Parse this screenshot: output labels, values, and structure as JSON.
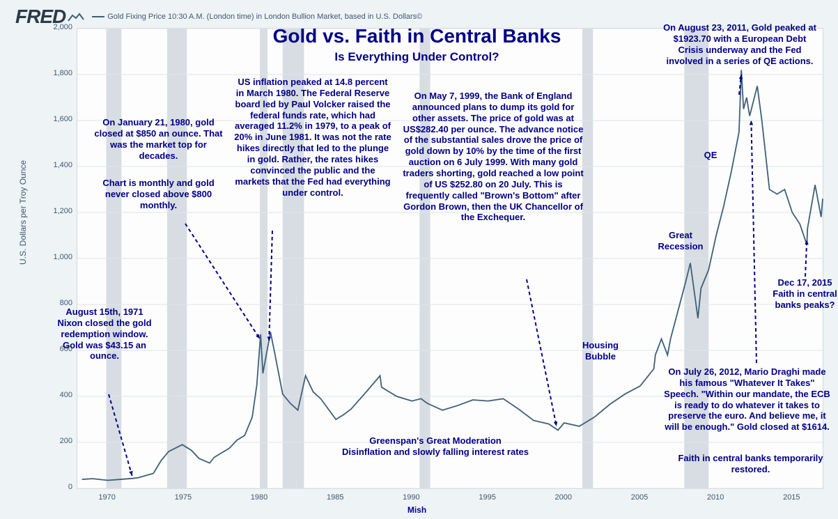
{
  "header": {
    "logo": "FRED",
    "series_label": "Gold Fixing Price 10:30 A.M. (London time) in London Bullion Market, based in U.S. Dollars©"
  },
  "chart": {
    "type": "line",
    "title": "Gold vs. Faith in Central Banks",
    "subtitle": "Is Everything Under Control?",
    "y_axis_label": "U.S. Dollars per Troy Ounce",
    "ylim": [
      0,
      2000
    ],
    "ytick_step": 200,
    "yticks": [
      0,
      200,
      400,
      600,
      800,
      1000,
      1200,
      1400,
      1600,
      1800,
      2000
    ],
    "xlim": [
      1968,
      2017
    ],
    "xticks": [
      1970,
      1975,
      1980,
      1985,
      1990,
      1995,
      2000,
      2005,
      2010,
      2015
    ],
    "line_color": "#3e5f79",
    "background_color": "#fdfdfd",
    "outer_bg": "#eef3f6",
    "grid_color": "#e0e5e9",
    "annotation_color": "#000088",
    "recession_color": "#d7dde2",
    "recessions": [
      [
        1969.9,
        1970.9
      ],
      [
        1973.9,
        1975.2
      ],
      [
        1980.0,
        1980.5
      ],
      [
        1981.5,
        1982.9
      ],
      [
        1990.5,
        1991.2
      ],
      [
        2001.2,
        2001.9
      ],
      [
        2007.9,
        2009.5
      ]
    ],
    "data": [
      [
        1968.3,
        39
      ],
      [
        1969,
        42
      ],
      [
        1970,
        35
      ],
      [
        1971,
        40
      ],
      [
        1971.6,
        43
      ],
      [
        1972,
        46
      ],
      [
        1973,
        65
      ],
      [
        1973.5,
        120
      ],
      [
        1974,
        160
      ],
      [
        1974.9,
        190
      ],
      [
        1975.5,
        165
      ],
      [
        1976,
        130
      ],
      [
        1976.7,
        110
      ],
      [
        1977,
        135
      ],
      [
        1978,
        175
      ],
      [
        1978.5,
        210
      ],
      [
        1979,
        230
      ],
      [
        1979.5,
        310
      ],
      [
        1979.8,
        450
      ],
      [
        1980.05,
        670
      ],
      [
        1980.2,
        500
      ],
      [
        1980.7,
        680
      ],
      [
        1981,
        580
      ],
      [
        1981.5,
        410
      ],
      [
        1982,
        370
      ],
      [
        1982.5,
        340
      ],
      [
        1983,
        490
      ],
      [
        1983.5,
        420
      ],
      [
        1984,
        390
      ],
      [
        1985,
        300
      ],
      [
        1985.5,
        320
      ],
      [
        1986,
        345
      ],
      [
        1987,
        420
      ],
      [
        1987.9,
        490
      ],
      [
        1988,
        440
      ],
      [
        1989,
        400
      ],
      [
        1990,
        380
      ],
      [
        1990.6,
        390
      ],
      [
        1991,
        370
      ],
      [
        1992,
        340
      ],
      [
        1993,
        360
      ],
      [
        1994,
        385
      ],
      [
        1995,
        380
      ],
      [
        1996,
        390
      ],
      [
        1997,
        345
      ],
      [
        1998,
        295
      ],
      [
        1999,
        280
      ],
      [
        1999.6,
        253
      ],
      [
        2000,
        285
      ],
      [
        2001,
        270
      ],
      [
        2002,
        310
      ],
      [
        2003,
        365
      ],
      [
        2004,
        410
      ],
      [
        2005,
        445
      ],
      [
        2005.9,
        520
      ],
      [
        2006,
        580
      ],
      [
        2006.4,
        650
      ],
      [
        2006.8,
        580
      ],
      [
        2007,
        650
      ],
      [
        2008,
        900
      ],
      [
        2008.3,
        980
      ],
      [
        2008.8,
        740
      ],
      [
        2009,
        870
      ],
      [
        2009.5,
        950
      ],
      [
        2010,
        1100
      ],
      [
        2010.5,
        1230
      ],
      [
        2011,
        1380
      ],
      [
        2011.5,
        1550
      ],
      [
        2011.65,
        1820
      ],
      [
        2011.8,
        1650
      ],
      [
        2012,
        1700
      ],
      [
        2012.2,
        1620
      ],
      [
        2012.7,
        1750
      ],
      [
        2013,
        1600
      ],
      [
        2013.5,
        1300
      ],
      [
        2014,
        1280
      ],
      [
        2014.5,
        1300
      ],
      [
        2015,
        1200
      ],
      [
        2015.5,
        1150
      ],
      [
        2015.96,
        1060
      ],
      [
        2016,
        1130
      ],
      [
        2016.5,
        1320
      ],
      [
        2016.9,
        1180
      ],
      [
        2017,
        1260
      ]
    ]
  },
  "annotations": {
    "nixon": "August 15th, 1971 Nixon closed the gold redemption window. Gold was $43.15 an ounce.",
    "jan1980": "On January 21, 1980, gold closed at $850 an ounce. That was the market top for decades.",
    "monthly": "Chart is monthly and gold never closed above $800 monthly.",
    "volcker": "US inflation peaked at 14.8 percent in March 1980. The Federal Reserve board led by Paul Volcker raised the federal funds rate, which had averaged 11.2% in 1979, to a peak of 20% in June 1981. It was not the rate hikes directly that led to the plunge in gold. Rather, the rates hikes convinced the public and the markets that the Fed had everything under control.",
    "boe": "On May 7, 1999, the Bank of England announced plans to dump its gold for other assets. The price of gold was at US$282.40 per ounce. The advance notice of the substantial sales drove the price of gold down by 10% by the time of the first auction on 6 July 1999. With many gold traders shorting, gold reached a low point of US $252.80 on 20 July. This is frequently called \"Brown's Bottom\" after Gordon Brown, then the UK Chancellor of the Exchequer.",
    "greenspan": "Greenspan's Great Moderation\nDisinflation and slowly falling interest rates",
    "housing": "Housing Bubble",
    "great_recession": "Great Recession",
    "qe": "QE",
    "aug2011": "On August 23, 2011, Gold peaked at $1923.70 with a European Debt Crisis underway and the Fed involved in a series of QE actions.",
    "draghi": "On July 26, 2012, Mario Draghi made his famous \"Whatever It Takes\" Speech. \"Within our mandate, the ECB is ready to do whatever it takes to preserve the euro. And believe me, it will be enough.\"  Gold closed at $1614.",
    "faith_restored": "Faith in central banks temporarily restored.",
    "dec2015": "Dec 17, 2015 Faith in central banks peaks?",
    "footer": "Mish"
  }
}
